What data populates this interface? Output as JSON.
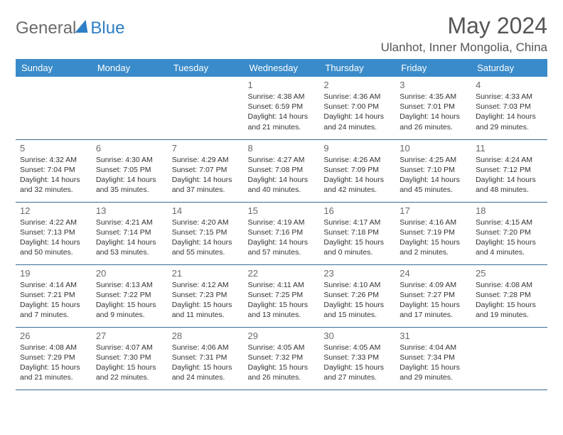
{
  "logo": {
    "part1": "General",
    "part2": "Blue"
  },
  "title": "May 2024",
  "location": "Ulanhot, Inner Mongolia, China",
  "styling": {
    "header_bg": "#3a8bc9",
    "header_text": "#ffffff",
    "border_color": "#3a6a95",
    "day_num_color": "#6a6a6a",
    "body_text": "#333333",
    "logo_gray": "#6b6b6b",
    "logo_blue": "#2d7ec4",
    "title_color": "#555555",
    "page_bg": "#ffffff",
    "day_header_fontsize": 13,
    "day_num_fontsize": 13,
    "day_info_fontsize": 10.5
  },
  "day_headers": [
    "Sunday",
    "Monday",
    "Tuesday",
    "Wednesday",
    "Thursday",
    "Friday",
    "Saturday"
  ],
  "weeks": [
    [
      {
        "num": "",
        "lines": []
      },
      {
        "num": "",
        "lines": []
      },
      {
        "num": "",
        "lines": []
      },
      {
        "num": "1",
        "lines": [
          "Sunrise: 4:38 AM",
          "Sunset: 6:59 PM",
          "Daylight: 14 hours",
          "and 21 minutes."
        ]
      },
      {
        "num": "2",
        "lines": [
          "Sunrise: 4:36 AM",
          "Sunset: 7:00 PM",
          "Daylight: 14 hours",
          "and 24 minutes."
        ]
      },
      {
        "num": "3",
        "lines": [
          "Sunrise: 4:35 AM",
          "Sunset: 7:01 PM",
          "Daylight: 14 hours",
          "and 26 minutes."
        ]
      },
      {
        "num": "4",
        "lines": [
          "Sunrise: 4:33 AM",
          "Sunset: 7:03 PM",
          "Daylight: 14 hours",
          "and 29 minutes."
        ]
      }
    ],
    [
      {
        "num": "5",
        "lines": [
          "Sunrise: 4:32 AM",
          "Sunset: 7:04 PM",
          "Daylight: 14 hours",
          "and 32 minutes."
        ]
      },
      {
        "num": "6",
        "lines": [
          "Sunrise: 4:30 AM",
          "Sunset: 7:05 PM",
          "Daylight: 14 hours",
          "and 35 minutes."
        ]
      },
      {
        "num": "7",
        "lines": [
          "Sunrise: 4:29 AM",
          "Sunset: 7:07 PM",
          "Daylight: 14 hours",
          "and 37 minutes."
        ]
      },
      {
        "num": "8",
        "lines": [
          "Sunrise: 4:27 AM",
          "Sunset: 7:08 PM",
          "Daylight: 14 hours",
          "and 40 minutes."
        ]
      },
      {
        "num": "9",
        "lines": [
          "Sunrise: 4:26 AM",
          "Sunset: 7:09 PM",
          "Daylight: 14 hours",
          "and 42 minutes."
        ]
      },
      {
        "num": "10",
        "lines": [
          "Sunrise: 4:25 AM",
          "Sunset: 7:10 PM",
          "Daylight: 14 hours",
          "and 45 minutes."
        ]
      },
      {
        "num": "11",
        "lines": [
          "Sunrise: 4:24 AM",
          "Sunset: 7:12 PM",
          "Daylight: 14 hours",
          "and 48 minutes."
        ]
      }
    ],
    [
      {
        "num": "12",
        "lines": [
          "Sunrise: 4:22 AM",
          "Sunset: 7:13 PM",
          "Daylight: 14 hours",
          "and 50 minutes."
        ]
      },
      {
        "num": "13",
        "lines": [
          "Sunrise: 4:21 AM",
          "Sunset: 7:14 PM",
          "Daylight: 14 hours",
          "and 53 minutes."
        ]
      },
      {
        "num": "14",
        "lines": [
          "Sunrise: 4:20 AM",
          "Sunset: 7:15 PM",
          "Daylight: 14 hours",
          "and 55 minutes."
        ]
      },
      {
        "num": "15",
        "lines": [
          "Sunrise: 4:19 AM",
          "Sunset: 7:16 PM",
          "Daylight: 14 hours",
          "and 57 minutes."
        ]
      },
      {
        "num": "16",
        "lines": [
          "Sunrise: 4:17 AM",
          "Sunset: 7:18 PM",
          "Daylight: 15 hours",
          "and 0 minutes."
        ]
      },
      {
        "num": "17",
        "lines": [
          "Sunrise: 4:16 AM",
          "Sunset: 7:19 PM",
          "Daylight: 15 hours",
          "and 2 minutes."
        ]
      },
      {
        "num": "18",
        "lines": [
          "Sunrise: 4:15 AM",
          "Sunset: 7:20 PM",
          "Daylight: 15 hours",
          "and 4 minutes."
        ]
      }
    ],
    [
      {
        "num": "19",
        "lines": [
          "Sunrise: 4:14 AM",
          "Sunset: 7:21 PM",
          "Daylight: 15 hours",
          "and 7 minutes."
        ]
      },
      {
        "num": "20",
        "lines": [
          "Sunrise: 4:13 AM",
          "Sunset: 7:22 PM",
          "Daylight: 15 hours",
          "and 9 minutes."
        ]
      },
      {
        "num": "21",
        "lines": [
          "Sunrise: 4:12 AM",
          "Sunset: 7:23 PM",
          "Daylight: 15 hours",
          "and 11 minutes."
        ]
      },
      {
        "num": "22",
        "lines": [
          "Sunrise: 4:11 AM",
          "Sunset: 7:25 PM",
          "Daylight: 15 hours",
          "and 13 minutes."
        ]
      },
      {
        "num": "23",
        "lines": [
          "Sunrise: 4:10 AM",
          "Sunset: 7:26 PM",
          "Daylight: 15 hours",
          "and 15 minutes."
        ]
      },
      {
        "num": "24",
        "lines": [
          "Sunrise: 4:09 AM",
          "Sunset: 7:27 PM",
          "Daylight: 15 hours",
          "and 17 minutes."
        ]
      },
      {
        "num": "25",
        "lines": [
          "Sunrise: 4:08 AM",
          "Sunset: 7:28 PM",
          "Daylight: 15 hours",
          "and 19 minutes."
        ]
      }
    ],
    [
      {
        "num": "26",
        "lines": [
          "Sunrise: 4:08 AM",
          "Sunset: 7:29 PM",
          "Daylight: 15 hours",
          "and 21 minutes."
        ]
      },
      {
        "num": "27",
        "lines": [
          "Sunrise: 4:07 AM",
          "Sunset: 7:30 PM",
          "Daylight: 15 hours",
          "and 22 minutes."
        ]
      },
      {
        "num": "28",
        "lines": [
          "Sunrise: 4:06 AM",
          "Sunset: 7:31 PM",
          "Daylight: 15 hours",
          "and 24 minutes."
        ]
      },
      {
        "num": "29",
        "lines": [
          "Sunrise: 4:05 AM",
          "Sunset: 7:32 PM",
          "Daylight: 15 hours",
          "and 26 minutes."
        ]
      },
      {
        "num": "30",
        "lines": [
          "Sunrise: 4:05 AM",
          "Sunset: 7:33 PM",
          "Daylight: 15 hours",
          "and 27 minutes."
        ]
      },
      {
        "num": "31",
        "lines": [
          "Sunrise: 4:04 AM",
          "Sunset: 7:34 PM",
          "Daylight: 15 hours",
          "and 29 minutes."
        ]
      },
      {
        "num": "",
        "lines": []
      }
    ]
  ]
}
